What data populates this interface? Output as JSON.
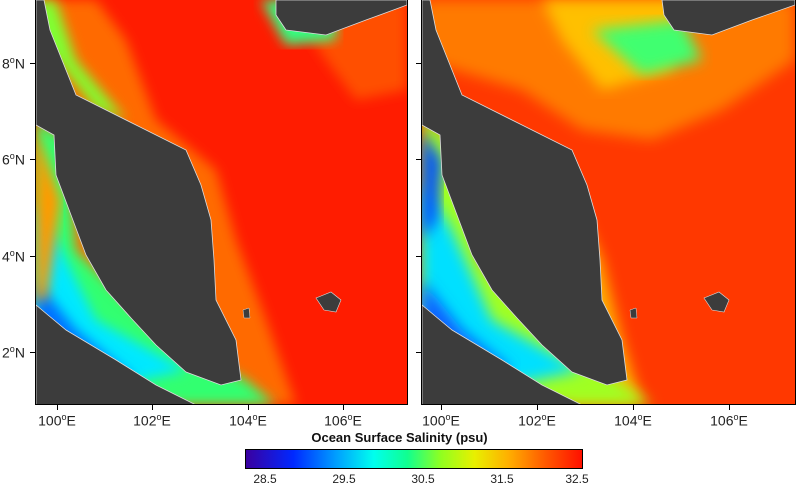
{
  "colorbar": {
    "title": "Ocean Surface Salinity (psu)",
    "ticks": [
      "28.5",
      "29.5",
      "30.5",
      "31.5",
      "32.5"
    ],
    "colors": [
      "#3a00a0",
      "#0028ff",
      "#00ffee",
      "#90ff20",
      "#ffb000",
      "#ff1000"
    ]
  },
  "axes": {
    "latitudes": [
      {
        "label": "8",
        "suffix": "N"
      },
      {
        "label": "6",
        "suffix": "N"
      },
      {
        "label": "4",
        "suffix": "N"
      },
      {
        "label": "2",
        "suffix": "N"
      }
    ],
    "longitudes": [
      {
        "label": "100",
        "suffix": "E"
      },
      {
        "label": "102",
        "suffix": "E"
      },
      {
        "label": "104",
        "suffix": "E"
      },
      {
        "label": "106",
        "suffix": "E"
      }
    ]
  },
  "maps": [
    {
      "name": "left-panel",
      "offshore_color": "#ff1a00"
    },
    {
      "name": "right-panel",
      "offshore_color": "#ff3a00"
    }
  ],
  "land_color": "#3c3c3c"
}
